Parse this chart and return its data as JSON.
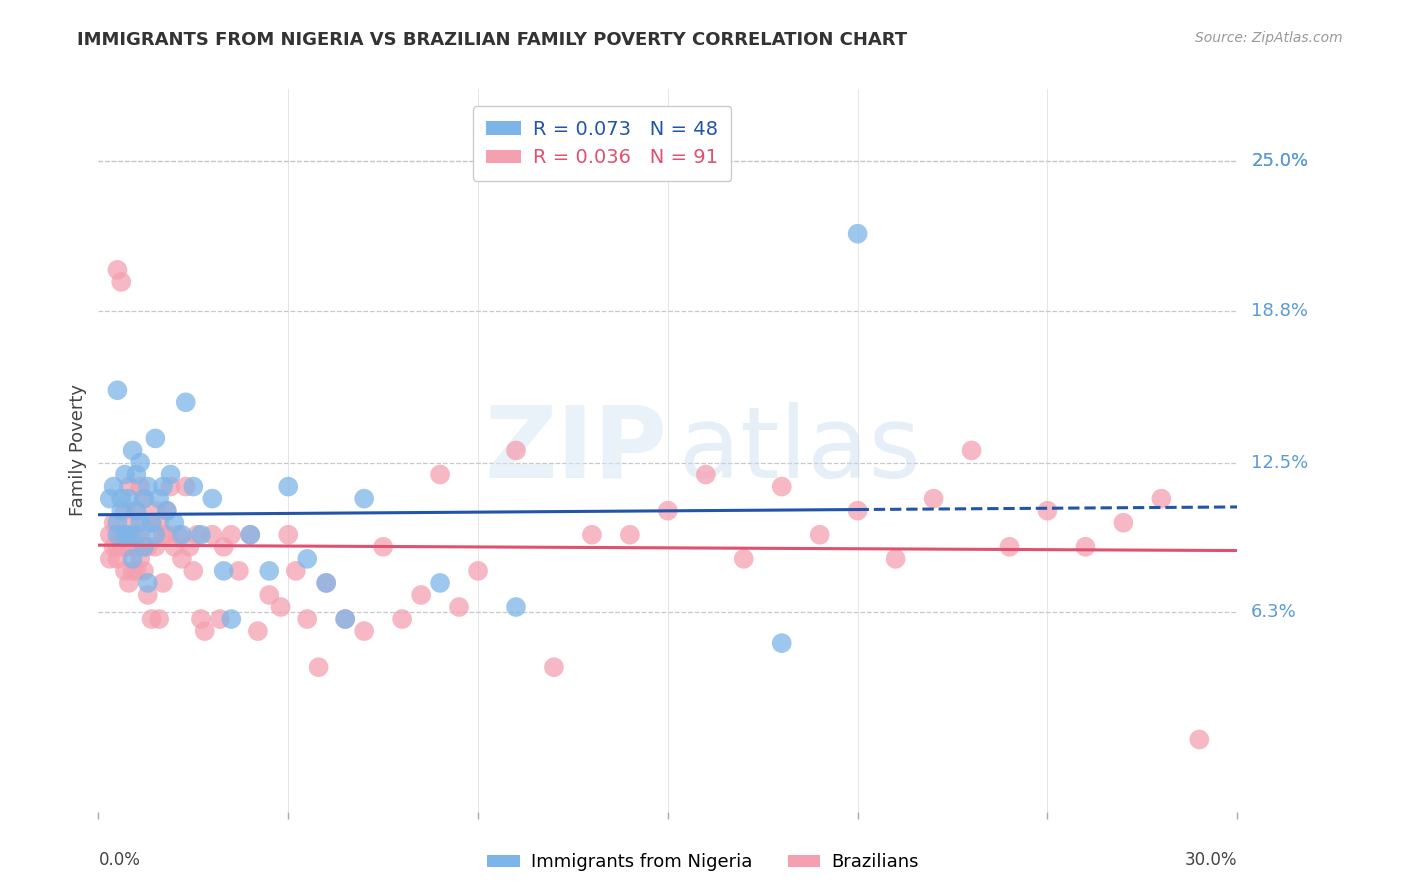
{
  "title": "IMMIGRANTS FROM NIGERIA VS BRAZILIAN FAMILY POVERTY CORRELATION CHART",
  "source": "Source: ZipAtlas.com",
  "ylabel": "Family Poverty",
  "y_tick_labels": [
    "25.0%",
    "18.8%",
    "12.5%",
    "6.3%"
  ],
  "y_tick_values": [
    0.25,
    0.188,
    0.125,
    0.063
  ],
  "xlim": [
    0.0,
    0.3
  ],
  "ylim": [
    -0.02,
    0.28
  ],
  "nigeria_R": 0.073,
  "nigeria_N": 48,
  "brazil_R": 0.036,
  "brazil_N": 91,
  "nigeria_color": "#7EB5E8",
  "brazil_color": "#F4A0B0",
  "nigeria_line_color": "#2255AA",
  "brazil_line_color": "#E05070",
  "right_label_color": "#5B9BD5",
  "nigeria_x": [
    0.003,
    0.004,
    0.005,
    0.005,
    0.005,
    0.006,
    0.006,
    0.007,
    0.007,
    0.008,
    0.008,
    0.009,
    0.009,
    0.01,
    0.01,
    0.01,
    0.011,
    0.011,
    0.012,
    0.012,
    0.013,
    0.013,
    0.014,
    0.015,
    0.015,
    0.016,
    0.017,
    0.018,
    0.019,
    0.02,
    0.022,
    0.023,
    0.025,
    0.027,
    0.03,
    0.033,
    0.035,
    0.04,
    0.045,
    0.05,
    0.055,
    0.06,
    0.065,
    0.07,
    0.09,
    0.11,
    0.18,
    0.2
  ],
  "nigeria_y": [
    0.11,
    0.115,
    0.1,
    0.095,
    0.155,
    0.11,
    0.105,
    0.095,
    0.12,
    0.095,
    0.11,
    0.085,
    0.13,
    0.12,
    0.105,
    0.095,
    0.125,
    0.1,
    0.11,
    0.09,
    0.115,
    0.075,
    0.1,
    0.135,
    0.095,
    0.11,
    0.115,
    0.105,
    0.12,
    0.1,
    0.095,
    0.15,
    0.115,
    0.095,
    0.11,
    0.08,
    0.06,
    0.095,
    0.08,
    0.115,
    0.085,
    0.075,
    0.06,
    0.11,
    0.075,
    0.065,
    0.05,
    0.22
  ],
  "brazil_x": [
    0.003,
    0.003,
    0.004,
    0.004,
    0.005,
    0.005,
    0.005,
    0.006,
    0.006,
    0.006,
    0.007,
    0.007,
    0.007,
    0.008,
    0.008,
    0.008,
    0.009,
    0.009,
    0.009,
    0.01,
    0.01,
    0.01,
    0.011,
    0.011,
    0.011,
    0.012,
    0.012,
    0.012,
    0.013,
    0.013,
    0.014,
    0.014,
    0.015,
    0.015,
    0.016,
    0.016,
    0.017,
    0.017,
    0.018,
    0.018,
    0.019,
    0.02,
    0.021,
    0.022,
    0.023,
    0.024,
    0.025,
    0.026,
    0.027,
    0.028,
    0.03,
    0.032,
    0.033,
    0.035,
    0.037,
    0.04,
    0.042,
    0.045,
    0.048,
    0.05,
    0.052,
    0.055,
    0.058,
    0.06,
    0.065,
    0.07,
    0.075,
    0.08,
    0.085,
    0.09,
    0.095,
    0.1,
    0.11,
    0.12,
    0.13,
    0.14,
    0.15,
    0.16,
    0.17,
    0.18,
    0.19,
    0.2,
    0.21,
    0.22,
    0.23,
    0.24,
    0.25,
    0.26,
    0.27,
    0.28,
    0.29
  ],
  "brazil_y": [
    0.095,
    0.085,
    0.1,
    0.09,
    0.09,
    0.085,
    0.205,
    0.09,
    0.095,
    0.2,
    0.09,
    0.08,
    0.105,
    0.09,
    0.075,
    0.115,
    0.08,
    0.095,
    0.1,
    0.09,
    0.08,
    0.105,
    0.085,
    0.095,
    0.115,
    0.08,
    0.09,
    0.11,
    0.09,
    0.07,
    0.1,
    0.06,
    0.09,
    0.105,
    0.06,
    0.1,
    0.095,
    0.075,
    0.105,
    0.095,
    0.115,
    0.09,
    0.095,
    0.085,
    0.115,
    0.09,
    0.08,
    0.095,
    0.06,
    0.055,
    0.095,
    0.06,
    0.09,
    0.095,
    0.08,
    0.095,
    0.055,
    0.07,
    0.065,
    0.095,
    0.08,
    0.06,
    0.04,
    0.075,
    0.06,
    0.055,
    0.09,
    0.06,
    0.07,
    0.12,
    0.065,
    0.08,
    0.13,
    0.04,
    0.095,
    0.095,
    0.105,
    0.12,
    0.085,
    0.115,
    0.095,
    0.105,
    0.085,
    0.11,
    0.13,
    0.09,
    0.105,
    0.09,
    0.1,
    0.11,
    0.01
  ]
}
